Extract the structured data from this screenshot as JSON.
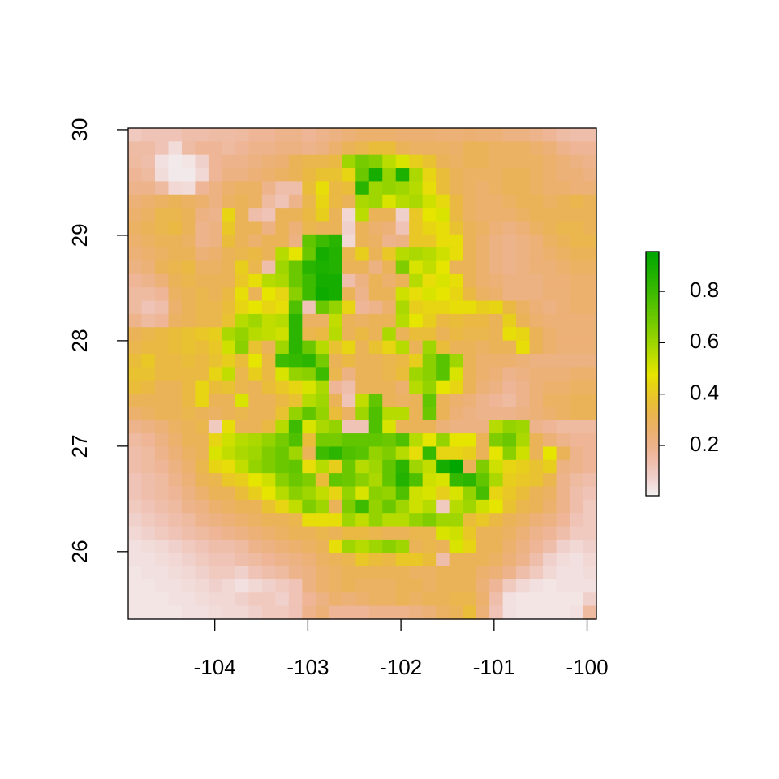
{
  "chart_data": {
    "type": "heatmap",
    "colormap": "terrain",
    "xlim": [
      -104.93,
      -99.9
    ],
    "ylim": [
      25.36,
      30.015
    ],
    "xticks": [
      -104,
      -103,
      -102,
      -101,
      -100
    ],
    "yticks": [
      26,
      27,
      28,
      29,
      30
    ],
    "zlim": [
      0.004,
      0.955
    ],
    "legend_ticks": [
      0.2,
      0.4,
      0.6,
      0.8
    ],
    "z": [
      [
        0.1,
        0.12,
        0.12,
        0.12,
        0.14,
        0.14,
        0.15,
        0.15,
        0.16,
        0.18,
        0.18,
        0.2,
        0.2,
        0.18,
        0.2,
        0.22,
        0.24,
        0.26,
        0.26,
        0.26,
        0.25,
        0.25,
        0.25,
        0.24,
        0.24,
        0.25,
        0.24,
        0.24,
        0.22,
        0.22,
        0.2,
        0.18,
        0.15,
        0.14,
        0.14
      ],
      [
        0.15,
        0.15,
        0.12,
        0.05,
        0.15,
        0.18,
        0.18,
        0.16,
        0.18,
        0.2,
        0.2,
        0.22,
        0.22,
        0.2,
        0.22,
        0.26,
        0.3,
        0.32,
        0.36,
        0.36,
        0.3,
        0.28,
        0.28,
        0.28,
        0.27,
        0.3,
        0.3,
        0.28,
        0.28,
        0.28,
        0.26,
        0.24,
        0.2,
        0.18,
        0.18
      ],
      [
        0.16,
        0.14,
        0.04,
        0.02,
        0.03,
        0.08,
        0.18,
        0.2,
        0.2,
        0.22,
        0.24,
        0.25,
        0.3,
        0.32,
        0.32,
        0.34,
        0.6,
        0.68,
        0.65,
        0.55,
        0.5,
        0.42,
        0.38,
        0.3,
        0.28,
        0.3,
        0.3,
        0.28,
        0.28,
        0.28,
        0.28,
        0.26,
        0.24,
        0.22,
        0.2
      ],
      [
        0.18,
        0.16,
        0.05,
        0.02,
        0.02,
        0.06,
        0.18,
        0.22,
        0.22,
        0.24,
        0.26,
        0.28,
        0.3,
        0.34,
        0.38,
        0.38,
        0.44,
        0.7,
        0.9,
        0.62,
        0.88,
        0.58,
        0.44,
        0.36,
        0.3,
        0.28,
        0.28,
        0.28,
        0.3,
        0.3,
        0.28,
        0.26,
        0.24,
        0.24,
        0.22
      ],
      [
        0.2,
        0.2,
        0.16,
        0.06,
        0.05,
        0.18,
        0.22,
        0.26,
        0.28,
        0.28,
        0.2,
        0.14,
        0.14,
        0.36,
        0.46,
        0.34,
        0.36,
        0.85,
        0.6,
        0.62,
        0.6,
        0.56,
        0.46,
        0.36,
        0.3,
        0.28,
        0.26,
        0.28,
        0.3,
        0.3,
        0.28,
        0.26,
        0.26,
        0.24,
        0.24
      ],
      [
        0.24,
        0.26,
        0.28,
        0.3,
        0.28,
        0.26,
        0.22,
        0.28,
        0.3,
        0.28,
        0.16,
        0.12,
        0.2,
        0.32,
        0.44,
        0.34,
        0.3,
        0.58,
        0.6,
        0.5,
        0.56,
        0.58,
        0.52,
        0.45,
        0.34,
        0.28,
        0.26,
        0.26,
        0.28,
        0.3,
        0.3,
        0.28,
        0.3,
        0.32,
        0.3
      ],
      [
        0.26,
        0.28,
        0.32,
        0.32,
        0.3,
        0.22,
        0.2,
        0.44,
        0.3,
        0.14,
        0.12,
        0.3,
        0.3,
        0.34,
        0.42,
        0.3,
        0.06,
        0.55,
        0.3,
        0.3,
        0.08,
        0.4,
        0.48,
        0.5,
        0.34,
        0.28,
        0.26,
        0.26,
        0.26,
        0.28,
        0.3,
        0.3,
        0.3,
        0.3,
        0.3
      ],
      [
        0.28,
        0.3,
        0.32,
        0.34,
        0.3,
        0.2,
        0.22,
        0.4,
        0.3,
        0.3,
        0.22,
        0.3,
        0.24,
        0.32,
        0.3,
        0.3,
        0.08,
        0.3,
        0.26,
        0.24,
        0.12,
        0.4,
        0.44,
        0.46,
        0.38,
        0.3,
        0.28,
        0.24,
        0.22,
        0.24,
        0.28,
        0.3,
        0.32,
        0.32,
        0.3
      ],
      [
        0.26,
        0.28,
        0.3,
        0.3,
        0.28,
        0.2,
        0.22,
        0.36,
        0.3,
        0.26,
        0.3,
        0.3,
        0.22,
        0.72,
        0.8,
        0.85,
        0.06,
        0.3,
        0.28,
        0.2,
        0.22,
        0.4,
        0.4,
        0.46,
        0.46,
        0.3,
        0.26,
        0.22,
        0.2,
        0.22,
        0.24,
        0.28,
        0.3,
        0.32,
        0.32
      ],
      [
        0.24,
        0.26,
        0.28,
        0.3,
        0.3,
        0.24,
        0.26,
        0.3,
        0.32,
        0.34,
        0.3,
        0.56,
        0.48,
        0.7,
        0.9,
        0.86,
        0.32,
        0.42,
        0.3,
        0.4,
        0.56,
        0.58,
        0.56,
        0.52,
        0.46,
        0.3,
        0.26,
        0.22,
        0.2,
        0.22,
        0.24,
        0.26,
        0.28,
        0.3,
        0.3
      ],
      [
        0.22,
        0.24,
        0.3,
        0.32,
        0.34,
        0.28,
        0.28,
        0.3,
        0.42,
        0.32,
        0.14,
        0.6,
        0.7,
        0.85,
        0.88,
        0.86,
        0.3,
        0.3,
        0.22,
        0.3,
        0.66,
        0.5,
        0.54,
        0.48,
        0.3,
        0.3,
        0.26,
        0.22,
        0.2,
        0.22,
        0.24,
        0.24,
        0.26,
        0.28,
        0.28
      ],
      [
        0.18,
        0.2,
        0.24,
        0.3,
        0.32,
        0.3,
        0.3,
        0.3,
        0.4,
        0.46,
        0.56,
        0.58,
        0.7,
        0.8,
        0.9,
        0.9,
        0.14,
        0.22,
        0.3,
        0.26,
        0.3,
        0.56,
        0.46,
        0.5,
        0.46,
        0.3,
        0.26,
        0.24,
        0.22,
        0.22,
        0.22,
        0.24,
        0.24,
        0.26,
        0.26
      ],
      [
        0.16,
        0.16,
        0.18,
        0.28,
        0.3,
        0.32,
        0.3,
        0.34,
        0.46,
        0.3,
        0.48,
        0.44,
        0.64,
        0.8,
        0.92,
        0.9,
        0.3,
        0.2,
        0.3,
        0.3,
        0.52,
        0.46,
        0.5,
        0.48,
        0.44,
        0.34,
        0.28,
        0.26,
        0.22,
        0.22,
        0.22,
        0.24,
        0.24,
        0.26,
        0.26
      ],
      [
        0.16,
        0.12,
        0.14,
        0.26,
        0.3,
        0.32,
        0.32,
        0.36,
        0.44,
        0.48,
        0.44,
        0.46,
        0.76,
        0.12,
        0.7,
        0.62,
        0.44,
        0.18,
        0.2,
        0.26,
        0.58,
        0.42,
        0.44,
        0.44,
        0.46,
        0.46,
        0.42,
        0.44,
        0.34,
        0.28,
        0.24,
        0.22,
        0.24,
        0.26,
        0.26
      ],
      [
        0.2,
        0.16,
        0.18,
        0.28,
        0.3,
        0.32,
        0.32,
        0.38,
        0.56,
        0.6,
        0.54,
        0.56,
        0.84,
        0.28,
        0.28,
        0.54,
        0.3,
        0.28,
        0.3,
        0.3,
        0.56,
        0.48,
        0.42,
        0.34,
        0.36,
        0.34,
        0.34,
        0.3,
        0.42,
        0.3,
        0.26,
        0.24,
        0.24,
        0.24,
        0.24
      ],
      [
        0.3,
        0.32,
        0.34,
        0.36,
        0.38,
        0.4,
        0.42,
        0.58,
        0.62,
        0.56,
        0.54,
        0.52,
        0.84,
        0.32,
        0.34,
        0.56,
        0.3,
        0.34,
        0.3,
        0.58,
        0.3,
        0.36,
        0.36,
        0.3,
        0.34,
        0.32,
        0.32,
        0.3,
        0.46,
        0.44,
        0.3,
        0.26,
        0.24,
        0.24,
        0.24
      ],
      [
        0.32,
        0.34,
        0.34,
        0.36,
        0.38,
        0.36,
        0.4,
        0.52,
        0.64,
        0.38,
        0.3,
        0.6,
        0.84,
        0.7,
        0.56,
        0.38,
        0.44,
        0.3,
        0.38,
        0.44,
        0.56,
        0.3,
        0.6,
        0.36,
        0.3,
        0.3,
        0.28,
        0.3,
        0.3,
        0.46,
        0.3,
        0.26,
        0.24,
        0.24,
        0.24
      ],
      [
        0.36,
        0.4,
        0.34,
        0.34,
        0.36,
        0.34,
        0.38,
        0.42,
        0.36,
        0.48,
        0.34,
        0.8,
        0.82,
        0.84,
        0.68,
        0.3,
        0.34,
        0.3,
        0.3,
        0.32,
        0.34,
        0.42,
        0.64,
        0.74,
        0.6,
        0.3,
        0.26,
        0.26,
        0.26,
        0.24,
        0.22,
        0.22,
        0.22,
        0.22,
        0.22
      ],
      [
        0.38,
        0.38,
        0.34,
        0.34,
        0.34,
        0.34,
        0.44,
        0.54,
        0.32,
        0.42,
        0.34,
        0.5,
        0.62,
        0.64,
        0.8,
        0.32,
        0.22,
        0.3,
        0.3,
        0.32,
        0.36,
        0.6,
        0.64,
        0.74,
        0.5,
        0.3,
        0.26,
        0.24,
        0.2,
        0.22,
        0.24,
        0.24,
        0.24,
        0.26,
        0.26
      ],
      [
        0.36,
        0.34,
        0.3,
        0.3,
        0.34,
        0.44,
        0.36,
        0.38,
        0.32,
        0.3,
        0.36,
        0.4,
        0.44,
        0.5,
        0.58,
        0.18,
        0.14,
        0.3,
        0.3,
        0.3,
        0.26,
        0.56,
        0.62,
        0.48,
        0.44,
        0.3,
        0.24,
        0.22,
        0.18,
        0.2,
        0.24,
        0.26,
        0.26,
        0.28,
        0.28
      ],
      [
        0.3,
        0.3,
        0.3,
        0.3,
        0.34,
        0.44,
        0.3,
        0.3,
        0.5,
        0.3,
        0.3,
        0.34,
        0.38,
        0.56,
        0.6,
        0.3,
        0.12,
        0.54,
        0.72,
        0.3,
        0.28,
        0.3,
        0.72,
        0.3,
        0.26,
        0.24,
        0.2,
        0.18,
        0.16,
        0.2,
        0.24,
        0.28,
        0.28,
        0.3,
        0.3
      ],
      [
        0.26,
        0.28,
        0.3,
        0.3,
        0.32,
        0.3,
        0.28,
        0.3,
        0.32,
        0.3,
        0.3,
        0.38,
        0.62,
        0.72,
        0.62,
        0.36,
        0.28,
        0.6,
        0.76,
        0.56,
        0.56,
        0.3,
        0.7,
        0.3,
        0.24,
        0.22,
        0.2,
        0.2,
        0.2,
        0.22,
        0.24,
        0.26,
        0.28,
        0.3,
        0.3
      ],
      [
        0.2,
        0.22,
        0.24,
        0.28,
        0.3,
        0.32,
        0.1,
        0.46,
        0.3,
        0.3,
        0.34,
        0.56,
        0.8,
        0.5,
        0.58,
        0.62,
        0.12,
        0.12,
        0.76,
        0.5,
        0.3,
        0.3,
        0.3,
        0.24,
        0.22,
        0.22,
        0.22,
        0.56,
        0.62,
        0.6,
        0.2,
        0.18,
        0.16,
        0.16,
        0.16
      ],
      [
        0.16,
        0.18,
        0.22,
        0.26,
        0.3,
        0.3,
        0.44,
        0.52,
        0.56,
        0.58,
        0.62,
        0.68,
        0.76,
        0.36,
        0.68,
        0.68,
        0.72,
        0.72,
        0.72,
        0.7,
        0.76,
        0.56,
        0.48,
        0.62,
        0.48,
        0.48,
        0.3,
        0.66,
        0.7,
        0.58,
        0.3,
        0.24,
        0.2,
        0.18,
        0.18
      ],
      [
        0.14,
        0.16,
        0.2,
        0.24,
        0.28,
        0.3,
        0.5,
        0.54,
        0.58,
        0.6,
        0.66,
        0.7,
        0.6,
        0.3,
        0.8,
        0.84,
        0.76,
        0.74,
        0.62,
        0.66,
        0.56,
        0.46,
        0.82,
        0.44,
        0.44,
        0.42,
        0.3,
        0.48,
        0.64,
        0.52,
        0.3,
        0.48,
        0.3,
        0.2,
        0.18
      ],
      [
        0.14,
        0.16,
        0.18,
        0.22,
        0.26,
        0.32,
        0.44,
        0.46,
        0.54,
        0.62,
        0.66,
        0.7,
        0.72,
        0.46,
        0.56,
        0.42,
        0.7,
        0.56,
        0.6,
        0.72,
        0.84,
        0.6,
        0.54,
        0.9,
        0.95,
        0.3,
        0.66,
        0.52,
        0.44,
        0.42,
        0.38,
        0.42,
        0.22,
        0.2,
        0.18
      ],
      [
        0.12,
        0.14,
        0.16,
        0.2,
        0.24,
        0.3,
        0.32,
        0.4,
        0.42,
        0.48,
        0.52,
        0.64,
        0.7,
        0.66,
        0.36,
        0.72,
        0.7,
        0.64,
        0.58,
        0.72,
        0.86,
        0.76,
        0.52,
        0.5,
        0.82,
        0.84,
        0.72,
        0.58,
        0.42,
        0.4,
        0.38,
        0.32,
        0.2,
        0.16,
        0.14
      ],
      [
        0.12,
        0.14,
        0.16,
        0.18,
        0.22,
        0.26,
        0.3,
        0.3,
        0.36,
        0.42,
        0.48,
        0.56,
        0.64,
        0.6,
        0.54,
        0.44,
        0.62,
        0.5,
        0.64,
        0.62,
        0.76,
        0.52,
        0.5,
        0.42,
        0.5,
        0.62,
        0.78,
        0.44,
        0.4,
        0.36,
        0.3,
        0.28,
        0.2,
        0.14,
        0.12
      ],
      [
        0.1,
        0.12,
        0.14,
        0.16,
        0.2,
        0.22,
        0.26,
        0.28,
        0.3,
        0.3,
        0.38,
        0.44,
        0.54,
        0.66,
        0.6,
        0.3,
        0.66,
        0.8,
        0.62,
        0.7,
        0.6,
        0.52,
        0.56,
        0.1,
        0.56,
        0.6,
        0.52,
        0.48,
        0.38,
        0.32,
        0.3,
        0.26,
        0.2,
        0.14,
        0.1
      ],
      [
        0.08,
        0.1,
        0.12,
        0.14,
        0.16,
        0.2,
        0.22,
        0.24,
        0.26,
        0.28,
        0.3,
        0.3,
        0.32,
        0.46,
        0.46,
        0.46,
        0.6,
        0.54,
        0.62,
        0.56,
        0.56,
        0.62,
        0.66,
        0.6,
        0.6,
        0.36,
        0.4,
        0.34,
        0.3,
        0.28,
        0.24,
        0.22,
        0.18,
        0.12,
        0.1
      ],
      [
        0.06,
        0.08,
        0.1,
        0.12,
        0.14,
        0.16,
        0.18,
        0.2,
        0.22,
        0.24,
        0.26,
        0.28,
        0.3,
        0.3,
        0.32,
        0.3,
        0.34,
        0.34,
        0.32,
        0.3,
        0.3,
        0.32,
        0.32,
        0.5,
        0.52,
        0.4,
        0.3,
        0.3,
        0.28,
        0.24,
        0.2,
        0.18,
        0.14,
        0.1,
        0.1
      ],
      [
        0.04,
        0.05,
        0.06,
        0.08,
        0.1,
        0.12,
        0.14,
        0.14,
        0.16,
        0.2,
        0.22,
        0.24,
        0.26,
        0.28,
        0.3,
        0.46,
        0.6,
        0.56,
        0.6,
        0.64,
        0.6,
        0.3,
        0.32,
        0.3,
        0.5,
        0.44,
        0.3,
        0.3,
        0.26,
        0.22,
        0.18,
        0.14,
        0.08,
        0.06,
        0.08
      ],
      [
        0.04,
        0.04,
        0.05,
        0.06,
        0.08,
        0.1,
        0.12,
        0.12,
        0.14,
        0.16,
        0.18,
        0.2,
        0.22,
        0.24,
        0.28,
        0.3,
        0.32,
        0.4,
        0.36,
        0.34,
        0.4,
        0.4,
        0.36,
        0.14,
        0.3,
        0.3,
        0.3,
        0.28,
        0.24,
        0.2,
        0.14,
        0.08,
        0.05,
        0.04,
        0.06
      ],
      [
        0.03,
        0.04,
        0.04,
        0.05,
        0.06,
        0.08,
        0.1,
        0.1,
        0.08,
        0.12,
        0.14,
        0.16,
        0.2,
        0.22,
        0.26,
        0.28,
        0.3,
        0.3,
        0.3,
        0.3,
        0.3,
        0.28,
        0.28,
        0.3,
        0.3,
        0.3,
        0.26,
        0.24,
        0.2,
        0.14,
        0.1,
        0.06,
        0.04,
        0.04,
        0.05
      ],
      [
        0.03,
        0.03,
        0.04,
        0.04,
        0.05,
        0.06,
        0.08,
        0.06,
        0.04,
        0.06,
        0.08,
        0.1,
        0.12,
        0.22,
        0.26,
        0.28,
        0.3,
        0.28,
        0.28,
        0.28,
        0.3,
        0.3,
        0.28,
        0.3,
        0.3,
        0.3,
        0.24,
        0.18,
        0.1,
        0.06,
        0.04,
        0.03,
        0.04,
        0.04,
        0.04
      ],
      [
        0.03,
        0.03,
        0.03,
        0.04,
        0.04,
        0.05,
        0.06,
        0.06,
        0.08,
        0.1,
        0.1,
        0.08,
        0.12,
        0.18,
        0.22,
        0.26,
        0.24,
        0.26,
        0.28,
        0.28,
        0.3,
        0.28,
        0.3,
        0.3,
        0.32,
        0.32,
        0.26,
        0.14,
        0.04,
        0.03,
        0.03,
        0.03,
        0.03,
        0.03,
        0.08
      ],
      [
        0.03,
        0.03,
        0.03,
        0.03,
        0.04,
        0.04,
        0.05,
        0.06,
        0.06,
        0.08,
        0.1,
        0.1,
        0.12,
        0.2,
        0.24,
        0.18,
        0.18,
        0.18,
        0.2,
        0.2,
        0.2,
        0.22,
        0.24,
        0.28,
        0.3,
        0.36,
        0.24,
        0.12,
        0.04,
        0.03,
        0.03,
        0.03,
        0.03,
        0.04,
        0.16
      ]
    ]
  }
}
